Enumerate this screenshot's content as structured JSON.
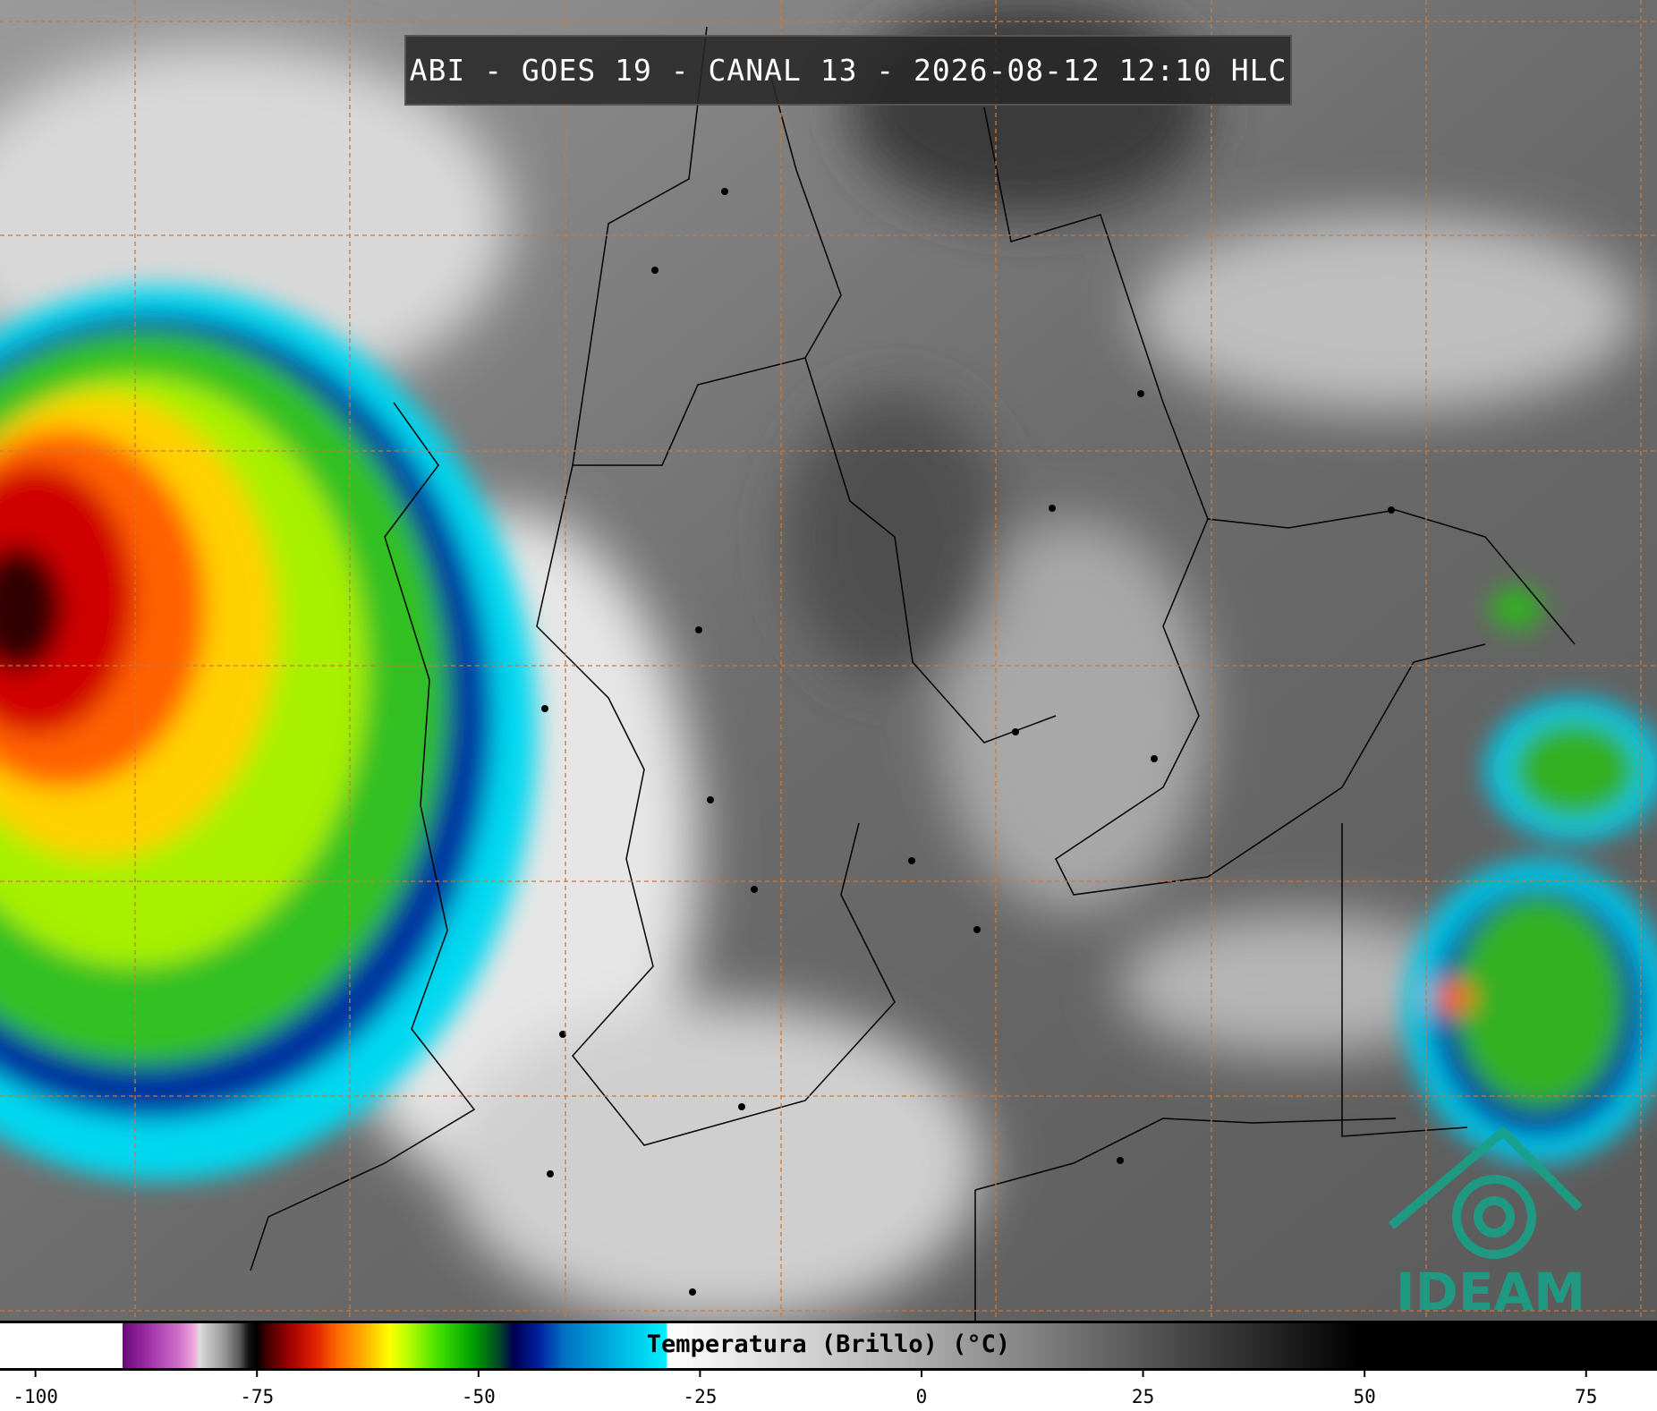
{
  "header": {
    "title": "ABI - GOES 19 - CANAL 13 - 2026-08-12 12:10 HLC"
  },
  "colorbar": {
    "label": "Temperatura (Brillo) (°C)",
    "range": [
      -104,
      83
    ],
    "ticks": [
      -100,
      -75,
      -50,
      -25,
      0,
      25,
      50,
      75
    ]
  },
  "logo": {
    "text": "IDEAM"
  }
}
